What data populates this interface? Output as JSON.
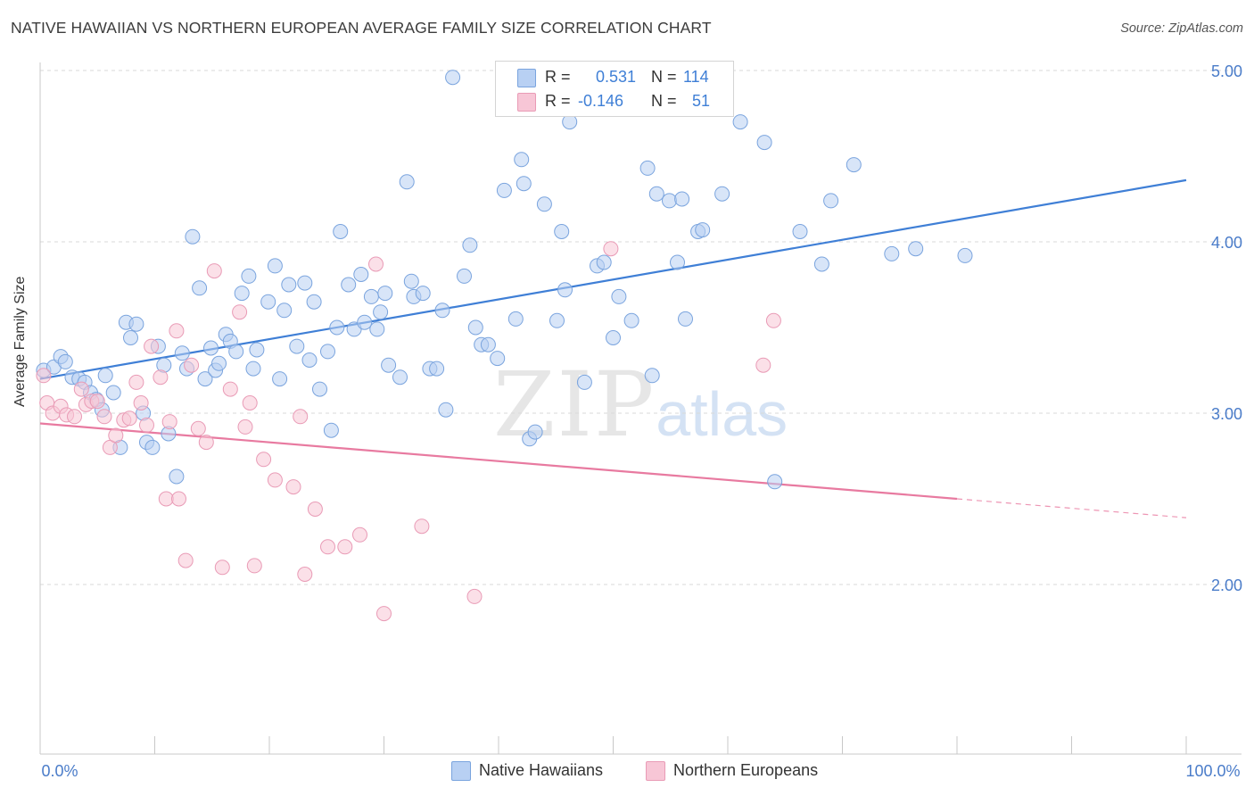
{
  "title": "NATIVE HAWAIIAN VS NORTHERN EUROPEAN AVERAGE FAMILY SIZE CORRELATION CHART",
  "source": "Source: ZipAtlas.com",
  "watermark": {
    "zip": "ZIP",
    "atlas": "atlas"
  },
  "colors": {
    "blue": "#3f7fd6",
    "blue_fill": "#b8d0f3",
    "pink": "#e87aa0",
    "pink_fill": "#f7c6d6",
    "grid": "#d9d9d9",
    "tick_text": "#4a7cc9"
  },
  "legend": {
    "rows": [
      {
        "r_label": "R =",
        "r_value": "0.531",
        "n_label": "N =",
        "n_value": "114"
      },
      {
        "r_label": "R =",
        "r_value": "-0.146",
        "n_label": "N =",
        "n_value": "51"
      }
    ]
  },
  "bottom_legend": {
    "series1": "Native Hawaiians",
    "series2": "Northern Europeans"
  },
  "chart_data": {
    "type": "scatter",
    "title": "NATIVE HAWAIIAN VS NORTHERN EUROPEAN AVERAGE FAMILY SIZE CORRELATION CHART",
    "xlabel": "",
    "ylabel": "Average Family Size",
    "xlim": [
      0,
      100
    ],
    "ylim": [
      1.0,
      5.1
    ],
    "x_tick_labels": [
      "0.0%",
      "100.0%"
    ],
    "y_ticks": [
      2.0,
      3.0,
      4.0,
      5.0
    ],
    "y_tick_labels": [
      "2.00",
      "3.00",
      "4.00",
      "5.00"
    ],
    "grid": "horizontal dashed",
    "legend_position": "top-center",
    "series": [
      {
        "name": "Native Hawaiians",
        "color": "#3f7fd6",
        "trend": {
          "x": [
            0,
            100
          ],
          "y": [
            3.2,
            4.36
          ]
        },
        "points": [
          [
            0.3,
            3.25
          ],
          [
            1.2,
            3.27
          ],
          [
            1.8,
            3.33
          ],
          [
            2.2,
            3.3
          ],
          [
            2.8,
            3.21
          ],
          [
            3.4,
            3.2
          ],
          [
            3.9,
            3.18
          ],
          [
            4.4,
            3.12
          ],
          [
            4.9,
            3.08
          ],
          [
            5.4,
            3.02
          ],
          [
            5.7,
            3.22
          ],
          [
            6.4,
            3.12
          ],
          [
            7.0,
            2.8
          ],
          [
            7.5,
            3.53
          ],
          [
            7.9,
            3.44
          ],
          [
            8.4,
            3.52
          ],
          [
            9.0,
            3.0
          ],
          [
            9.3,
            2.83
          ],
          [
            9.8,
            2.8
          ],
          [
            10.3,
            3.39
          ],
          [
            10.8,
            3.28
          ],
          [
            11.2,
            2.88
          ],
          [
            11.9,
            2.63
          ],
          [
            12.4,
            3.35
          ],
          [
            12.8,
            3.26
          ],
          [
            13.3,
            4.03
          ],
          [
            13.9,
            3.73
          ],
          [
            14.4,
            3.2
          ],
          [
            14.9,
            3.38
          ],
          [
            15.3,
            3.25
          ],
          [
            15.6,
            3.29
          ],
          [
            16.2,
            3.46
          ],
          [
            16.6,
            3.42
          ],
          [
            17.1,
            3.36
          ],
          [
            17.6,
            3.7
          ],
          [
            18.2,
            3.8
          ],
          [
            18.6,
            3.26
          ],
          [
            18.9,
            3.37
          ],
          [
            19.9,
            3.65
          ],
          [
            20.5,
            3.86
          ],
          [
            20.9,
            3.2
          ],
          [
            21.3,
            3.6
          ],
          [
            21.7,
            3.75
          ],
          [
            22.4,
            3.39
          ],
          [
            23.1,
            3.76
          ],
          [
            23.5,
            3.31
          ],
          [
            23.9,
            3.65
          ],
          [
            24.4,
            3.14
          ],
          [
            25.1,
            3.36
          ],
          [
            25.4,
            2.9
          ],
          [
            25.9,
            3.5
          ],
          [
            26.2,
            4.06
          ],
          [
            26.9,
            3.75
          ],
          [
            27.4,
            3.49
          ],
          [
            28.0,
            3.81
          ],
          [
            28.3,
            3.53
          ],
          [
            28.9,
            3.68
          ],
          [
            29.4,
            3.49
          ],
          [
            29.7,
            3.59
          ],
          [
            30.1,
            3.7
          ],
          [
            30.4,
            3.28
          ],
          [
            31.4,
            3.21
          ],
          [
            32.0,
            4.35
          ],
          [
            32.4,
            3.77
          ],
          [
            32.6,
            3.68
          ],
          [
            33.4,
            3.7
          ],
          [
            34.0,
            3.26
          ],
          [
            34.6,
            3.26
          ],
          [
            35.1,
            3.6
          ],
          [
            35.4,
            3.02
          ],
          [
            36.0,
            4.96
          ],
          [
            37.0,
            3.8
          ],
          [
            37.5,
            3.98
          ],
          [
            38.0,
            3.5
          ],
          [
            38.5,
            3.4
          ],
          [
            39.1,
            3.4
          ],
          [
            39.9,
            3.32
          ],
          [
            40.5,
            4.3
          ],
          [
            41.5,
            3.55
          ],
          [
            42.0,
            4.48
          ],
          [
            42.2,
            4.34
          ],
          [
            42.7,
            2.85
          ],
          [
            43.2,
            2.89
          ],
          [
            44.0,
            4.22
          ],
          [
            45.1,
            3.54
          ],
          [
            45.5,
            4.06
          ],
          [
            45.8,
            3.72
          ],
          [
            46.2,
            4.7
          ],
          [
            47.5,
            3.18
          ],
          [
            48.6,
            3.86
          ],
          [
            49.2,
            3.88
          ],
          [
            50.0,
            3.44
          ],
          [
            50.5,
            3.68
          ],
          [
            51.6,
            3.54
          ],
          [
            53.0,
            4.43
          ],
          [
            53.4,
            3.22
          ],
          [
            53.8,
            4.28
          ],
          [
            54.9,
            4.24
          ],
          [
            55.6,
            3.88
          ],
          [
            56.0,
            4.25
          ],
          [
            56.3,
            3.55
          ],
          [
            57.4,
            4.06
          ],
          [
            57.8,
            4.07
          ],
          [
            59.5,
            4.28
          ],
          [
            61.1,
            4.7
          ],
          [
            63.2,
            4.58
          ],
          [
            64.1,
            2.6
          ],
          [
            66.3,
            4.06
          ],
          [
            68.2,
            3.87
          ],
          [
            69.0,
            4.24
          ],
          [
            71.0,
            4.45
          ],
          [
            74.3,
            3.93
          ],
          [
            76.4,
            3.96
          ],
          [
            80.7,
            3.92
          ]
        ]
      },
      {
        "name": "Northern Europeans",
        "color": "#e87aa0",
        "trend": {
          "x": [
            0,
            80
          ],
          "y": [
            2.94,
            2.5
          ]
        },
        "trend_dashed": {
          "x": [
            80,
            100
          ],
          "y": [
            2.5,
            2.39
          ]
        },
        "points": [
          [
            0.3,
            3.22
          ],
          [
            0.6,
            3.06
          ],
          [
            1.1,
            3.0
          ],
          [
            1.8,
            3.04
          ],
          [
            2.3,
            2.99
          ],
          [
            3.0,
            2.98
          ],
          [
            3.6,
            3.14
          ],
          [
            4.0,
            3.05
          ],
          [
            4.5,
            3.07
          ],
          [
            5.0,
            3.07
          ],
          [
            5.6,
            2.98
          ],
          [
            6.1,
            2.8
          ],
          [
            6.6,
            2.87
          ],
          [
            7.3,
            2.96
          ],
          [
            7.8,
            2.97
          ],
          [
            8.4,
            3.18
          ],
          [
            8.8,
            3.06
          ],
          [
            9.3,
            2.93
          ],
          [
            9.7,
            3.39
          ],
          [
            10.5,
            3.21
          ],
          [
            11.0,
            2.5
          ],
          [
            11.3,
            2.95
          ],
          [
            11.9,
            3.48
          ],
          [
            12.1,
            2.5
          ],
          [
            12.7,
            2.14
          ],
          [
            13.2,
            3.28
          ],
          [
            13.8,
            2.91
          ],
          [
            14.5,
            2.83
          ],
          [
            15.2,
            3.83
          ],
          [
            15.9,
            2.1
          ],
          [
            16.6,
            3.14
          ],
          [
            17.4,
            3.59
          ],
          [
            17.9,
            2.92
          ],
          [
            18.3,
            3.06
          ],
          [
            18.7,
            2.11
          ],
          [
            19.5,
            2.73
          ],
          [
            20.5,
            2.61
          ],
          [
            22.1,
            2.57
          ],
          [
            22.7,
            2.98
          ],
          [
            23.1,
            2.06
          ],
          [
            24.0,
            2.44
          ],
          [
            25.1,
            2.22
          ],
          [
            26.6,
            2.22
          ],
          [
            27.9,
            2.29
          ],
          [
            29.3,
            3.87
          ],
          [
            30.0,
            1.83
          ],
          [
            33.3,
            2.34
          ],
          [
            37.9,
            1.93
          ],
          [
            49.8,
            3.96
          ],
          [
            63.1,
            3.28
          ],
          [
            64.0,
            3.54
          ]
        ]
      }
    ]
  }
}
